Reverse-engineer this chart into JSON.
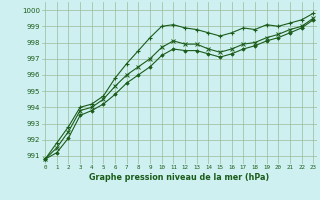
{
  "title": "Graphe pression niveau de la mer (hPa)",
  "bg_color": "#cff0f0",
  "grid_color": "#99bb99",
  "line_color": "#1a5c1a",
  "x_ticks": [
    0,
    1,
    2,
    3,
    4,
    5,
    6,
    7,
    8,
    9,
    10,
    11,
    12,
    13,
    14,
    15,
    16,
    17,
    18,
    19,
    20,
    21,
    22,
    23
  ],
  "y_ticks": [
    991,
    992,
    993,
    994,
    995,
    996,
    997,
    998,
    999,
    1000
  ],
  "ylim": [
    990.5,
    1000.5
  ],
  "xlim": [
    -0.3,
    23.3
  ],
  "series1": [
    990.8,
    991.8,
    992.8,
    994.0,
    994.2,
    994.7,
    995.8,
    996.7,
    997.5,
    998.3,
    999.0,
    999.1,
    998.9,
    998.8,
    998.6,
    998.4,
    998.6,
    998.9,
    998.8,
    999.1,
    999.0,
    999.2,
    999.4,
    999.8
  ],
  "series2": [
    990.8,
    991.5,
    992.5,
    993.8,
    994.0,
    994.5,
    995.3,
    996.0,
    996.5,
    997.0,
    997.7,
    998.1,
    997.9,
    997.9,
    997.6,
    997.4,
    997.6,
    997.9,
    998.0,
    998.3,
    998.5,
    998.8,
    999.0,
    999.5
  ],
  "series3": [
    990.8,
    991.2,
    992.1,
    993.5,
    993.8,
    994.2,
    994.8,
    995.5,
    996.0,
    996.5,
    997.2,
    997.6,
    997.5,
    997.5,
    997.3,
    997.1,
    997.3,
    997.6,
    997.8,
    998.1,
    998.3,
    998.6,
    998.9,
    999.4
  ]
}
